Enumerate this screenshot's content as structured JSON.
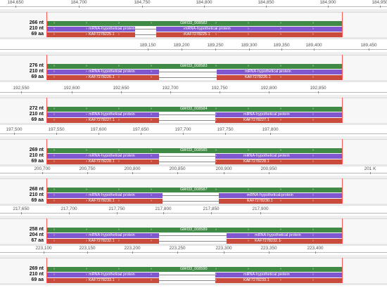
{
  "panels": [
    {
      "ticks": [
        "184,650",
        "184,700",
        "184,750",
        "184,800",
        "184,850",
        "184,900",
        "184,950"
      ],
      "tick_bonus": "",
      "labels": [
        "266 nt",
        "210 nt",
        "69 aa"
      ],
      "gene": "GWI33_008582",
      "mrna": "mRNA-hypothetical protein",
      "cds": "KAF7278225.1"
    },
    {
      "ticks": [
        "189,150",
        "189,200",
        "189,250",
        "189,300",
        "189,350",
        "189,400",
        "189,450"
      ],
      "tick_bonus": "",
      "labels": [
        "276 nt",
        "210 nt",
        "69 aa"
      ],
      "gene": "GWI33_008583",
      "mrna": "mRNA-hypothetical protein",
      "cds": "KAF7278226.1"
    },
    {
      "ticks": [
        "192,550",
        "192,600",
        "192,650",
        "192,700",
        "192,750",
        "192,800",
        "192,850"
      ],
      "tick_bonus": "",
      "labels": [
        "272 nt",
        "210 nt",
        "69 aa"
      ],
      "gene": "GWI33_008584",
      "mrna": "mRNA-hypothetical protein",
      "cds": "KAF7278227.1"
    },
    {
      "ticks": [
        "197,500",
        "197,550",
        "197,600",
        "197,650",
        "197,700",
        "197,750",
        "197,800"
      ],
      "tick_bonus": "",
      "labels": [
        "269 nt",
        "210 nt",
        "69 aa"
      ],
      "gene": "GWI33_008585",
      "mrna": "mRNA-hypothetical protein",
      "cds": "KAF7278228.1"
    },
    {
      "ticks": [
        "200,700",
        "200,750",
        "200,800",
        "200,850",
        "200,900",
        "200,950",
        "201 K"
      ],
      "tick_bonus": "",
      "labels": [
        "268 nt",
        "210 nt",
        "69 aa"
      ],
      "gene": "GWI33_008587",
      "mrna": "mRNA-hypothetical protein",
      "cds": "KAF7278230.1"
    },
    {
      "ticks": [
        "217,650",
        "217,700",
        "217,750",
        "217,800",
        "217,850",
        "217,900"
      ],
      "tick_bonus": "",
      "labels": [
        "258 nt",
        "204 nt",
        "67 aa"
      ],
      "gene": "GWI33_008589",
      "mrna": "mRNA-hypothetical protein",
      "cds": "KAF7278232.1"
    },
    {
      "ticks": [
        "223,100",
        "223,150",
        "223,200",
        "223,250",
        "223,300",
        "223,350",
        "223,400"
      ],
      "tick_bonus": "",
      "labels": [
        "269 nt",
        "210 nt",
        "69 aa"
      ],
      "gene": "GWI33_008590",
      "mrna": "mRNA-hypothetical protein",
      "cds": "KAF7278233.1"
    }
  ],
  "colors": {
    "gene": "#3f8b45",
    "mrna": "#8057ce",
    "cds": "#c84b3c",
    "marker": "#ff5555"
  }
}
